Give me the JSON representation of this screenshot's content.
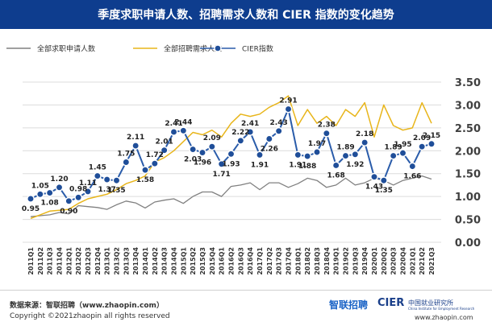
{
  "title": "季度求职申请人数、招聘需求人数和 CIER 指数的变化趋势",
  "footer": {
    "source": "数据来源：智联招聘（www.zhaopin.com）",
    "copyright": "Copyright ©2021zhaopin all rights reserved",
    "brand_zhaopin": "智联招聘",
    "brand_cier": "CIER",
    "brand_cier_sub": "中国就业研究所",
    "brand_cier_en": "China Institute for Employment Research",
    "website": "www.zhaopin.com"
  },
  "colors": {
    "applicants": "#808080",
    "demand": "#e8b51a",
    "cier": "#2a5caa",
    "marker_fill": "#1f4e99",
    "title_bar": "#0e3d8e"
  },
  "chart_data": {
    "type": "line",
    "categories": [
      "2011Q1",
      "2011Q2",
      "2011Q3",
      "2011Q4",
      "2012Q1",
      "2012Q2",
      "2012Q3",
      "2012Q4",
      "2013Q1",
      "2013Q2",
      "2013Q3",
      "2013Q4",
      "2014Q1",
      "2014Q2",
      "2014Q3",
      "2014Q4",
      "2015Q1",
      "2015Q2",
      "2015Q3",
      "2015Q4",
      "2016Q1",
      "2016Q2",
      "2016Q3",
      "2016Q4",
      "2017Q1",
      "2017Q2",
      "2017Q3",
      "2017Q4",
      "2018Q1",
      "2018Q2",
      "2018Q3",
      "2018Q4",
      "2019Q1",
      "2019Q2",
      "2019Q3",
      "2019Q4",
      "2020Q1",
      "2020Q2",
      "2020Q3",
      "2020Q4",
      "2021Q1",
      "2021Q2",
      "2021Q3"
    ],
    "series": [
      {
        "name": "全部求职申请人数",
        "values": [
          0.56,
          0.58,
          0.6,
          0.65,
          0.62,
          0.8,
          0.78,
          0.76,
          0.72,
          0.82,
          0.9,
          0.86,
          0.75,
          0.88,
          0.92,
          0.95,
          0.85,
          1.0,
          1.1,
          1.1,
          1.0,
          1.22,
          1.25,
          1.3,
          1.15,
          1.3,
          1.3,
          1.2,
          1.28,
          1.4,
          1.35,
          1.2,
          1.25,
          1.4,
          1.25,
          1.3,
          1.4,
          1.35,
          1.25,
          1.35,
          1.4,
          1.45,
          1.38
        ]
      },
      {
        "name": "全部招聘需求人数",
        "values": [
          0.52,
          0.6,
          0.68,
          0.7,
          0.72,
          0.85,
          0.95,
          1.0,
          1.05,
          1.15,
          1.28,
          1.35,
          1.45,
          1.75,
          1.85,
          2.0,
          2.2,
          2.4,
          2.35,
          2.45,
          2.3,
          2.6,
          2.8,
          2.75,
          2.8,
          2.95,
          3.05,
          3.2,
          2.55,
          2.9,
          2.6,
          2.75,
          2.55,
          2.9,
          2.75,
          3.05,
          2.3,
          3.0,
          2.55,
          2.45,
          2.5,
          3.05,
          2.6
        ]
      },
      {
        "name": "CIER指数",
        "values": [
          0.95,
          1.05,
          1.08,
          1.2,
          0.9,
          0.98,
          1.11,
          1.45,
          1.37,
          1.35,
          1.75,
          2.11,
          1.58,
          1.72,
          2.01,
          2.41,
          2.44,
          2.03,
          1.96,
          2.09,
          1.71,
          1.93,
          2.22,
          2.41,
          1.91,
          2.26,
          2.43,
          2.91,
          1.91,
          1.88,
          1.97,
          2.38,
          1.68,
          1.89,
          1.92,
          2.18,
          1.43,
          1.35,
          1.89,
          1.95,
          1.66,
          2.09,
          2.15
        ]
      }
    ],
    "data_labels": [
      {
        "index": 0,
        "text": "0.95",
        "pos": "below"
      },
      {
        "index": 1,
        "text": "1.05",
        "pos": "above"
      },
      {
        "index": 2,
        "text": "1.08",
        "pos": "below"
      },
      {
        "index": 3,
        "text": "1.20",
        "pos": "above"
      },
      {
        "index": 4,
        "text": "0.90",
        "pos": "below"
      },
      {
        "index": 5,
        "text": "0.98",
        "pos": "above"
      },
      {
        "index": 6,
        "text": "1.11",
        "pos": "above"
      },
      {
        "index": 7,
        "text": "1.45",
        "pos": "above"
      },
      {
        "index": 8,
        "text": "1.37",
        "pos": "below"
      },
      {
        "index": 9,
        "text": "1.35",
        "pos": "below"
      },
      {
        "index": 10,
        "text": "1.75",
        "pos": "above"
      },
      {
        "index": 11,
        "text": "2.11",
        "pos": "above"
      },
      {
        "index": 12,
        "text": "1.58",
        "pos": "below"
      },
      {
        "index": 13,
        "text": "1.72",
        "pos": "above"
      },
      {
        "index": 14,
        "text": "2.01",
        "pos": "above"
      },
      {
        "index": 15,
        "text": "2.41",
        "pos": "above"
      },
      {
        "index": 16,
        "text": "2.44",
        "pos": "above"
      },
      {
        "index": 17,
        "text": "2.03",
        "pos": "below"
      },
      {
        "index": 18,
        "text": "1.96",
        "pos": "below"
      },
      {
        "index": 19,
        "text": "2.09",
        "pos": "above"
      },
      {
        "index": 20,
        "text": "1.71",
        "pos": "below"
      },
      {
        "index": 21,
        "text": "1.93",
        "pos": "below"
      },
      {
        "index": 22,
        "text": "2.22",
        "pos": "above"
      },
      {
        "index": 23,
        "text": "2.41",
        "pos": "above"
      },
      {
        "index": 24,
        "text": "1.91",
        "pos": "below"
      },
      {
        "index": 25,
        "text": "2.26",
        "pos": "below"
      },
      {
        "index": 26,
        "text": "2.43",
        "pos": "above"
      },
      {
        "index": 27,
        "text": "2.91",
        "pos": "above"
      },
      {
        "index": 28,
        "text": "1.91",
        "pos": "below"
      },
      {
        "index": 29,
        "text": "1.88",
        "pos": "below"
      },
      {
        "index": 30,
        "text": "1.97",
        "pos": "above"
      },
      {
        "index": 31,
        "text": "2.38",
        "pos": "above"
      },
      {
        "index": 32,
        "text": "1.68",
        "pos": "below"
      },
      {
        "index": 33,
        "text": "1.89",
        "pos": "above"
      },
      {
        "index": 34,
        "text": "1.92",
        "pos": "below"
      },
      {
        "index": 35,
        "text": "2.18",
        "pos": "above"
      },
      {
        "index": 36,
        "text": "1.43",
        "pos": "below"
      },
      {
        "index": 37,
        "text": "1.35",
        "pos": "below"
      },
      {
        "index": 38,
        "text": "1.89",
        "pos": "above"
      },
      {
        "index": 39,
        "text": "1.95",
        "pos": "above"
      },
      {
        "index": 40,
        "text": "1.66",
        "pos": "below"
      },
      {
        "index": 41,
        "text": "2.09",
        "pos": "above"
      },
      {
        "index": 42,
        "text": "2.15",
        "pos": "above"
      }
    ],
    "y_ticks": [
      "0.00",
      "0.50",
      "1.00",
      "1.50",
      "2.00",
      "2.50",
      "3.00",
      "3.50"
    ],
    "ylim": [
      0,
      3.5
    ],
    "grid": true,
    "legend_position": "top"
  }
}
